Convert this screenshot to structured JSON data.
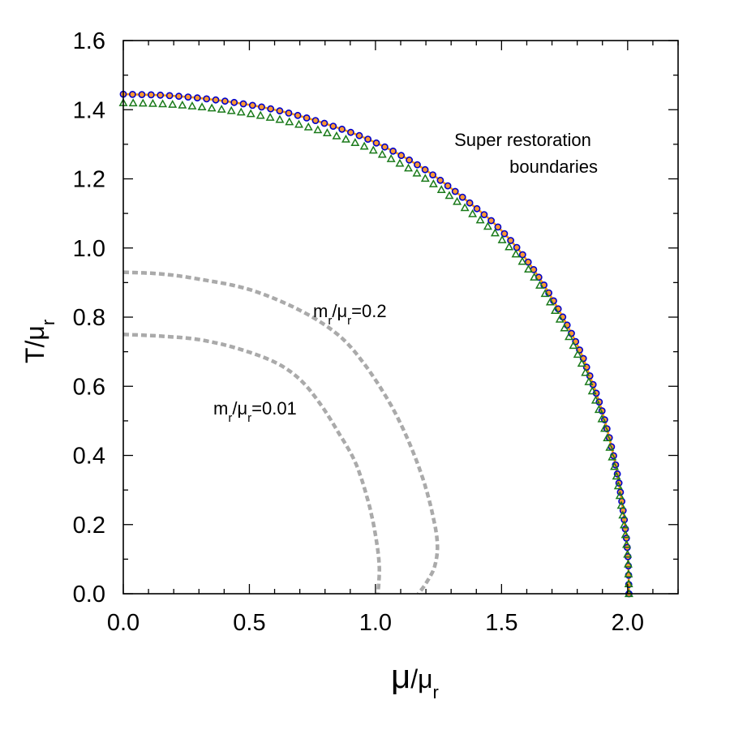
{
  "chart_data": {
    "type": "line",
    "title": "",
    "xlabel": {
      "main": "μ",
      "sep": "/μ",
      "sub": "r"
    },
    "ylabel": {
      "main": "T/μ",
      "sub": "r"
    },
    "xlim": [
      0,
      2.2
    ],
    "ylim": [
      0,
      1.6
    ],
    "x_ticks": [
      "0.0",
      "0.5",
      "1.0",
      "1.5",
      "2.0"
    ],
    "y_ticks": [
      "0.0",
      "0.2",
      "0.4",
      "0.6",
      "0.8",
      "1.0",
      "1.2",
      "1.4",
      "1.6"
    ],
    "grid": false,
    "legend": "none",
    "annotations": [
      {
        "line1": "Super restoration",
        "line2": "boundaries"
      },
      {
        "pre": "m",
        "sub1": "r",
        "mid": "/μ",
        "sub2": "r",
        "post": "=0.2"
      },
      {
        "pre": "m",
        "sub1": "r",
        "mid": "/μ",
        "sub2": "r",
        "post": "=0.01"
      }
    ],
    "colors": {
      "circles_edge": "#0000cc",
      "circles_fill": "#ff9933",
      "orange_line": "#ff9900",
      "triangles": "#1a7a1a",
      "dotted": "#aaaaaa"
    },
    "series": [
      {
        "style": "orange-solid",
        "points": [
          [
            0,
            1.445
          ],
          [
            0.2,
            1.44
          ],
          [
            0.4,
            1.425
          ],
          [
            0.6,
            1.4
          ],
          [
            0.8,
            1.36
          ],
          [
            1.0,
            1.305
          ],
          [
            1.2,
            1.225
          ],
          [
            1.4,
            1.115
          ],
          [
            1.5,
            1.05
          ],
          [
            1.6,
            0.965
          ],
          [
            1.7,
            0.855
          ],
          [
            1.8,
            0.72
          ],
          [
            1.85,
            0.63
          ],
          [
            1.9,
            0.525
          ],
          [
            1.95,
            0.38
          ],
          [
            1.98,
            0.25
          ],
          [
            2.0,
            0.12
          ],
          [
            2.005,
            0.0
          ]
        ]
      },
      {
        "style": "blue-circles",
        "points": [
          [
            0,
            1.445
          ],
          [
            0.2,
            1.44
          ],
          [
            0.4,
            1.425
          ],
          [
            0.6,
            1.4
          ],
          [
            0.8,
            1.36
          ],
          [
            1.0,
            1.305
          ],
          [
            1.2,
            1.225
          ],
          [
            1.4,
            1.115
          ],
          [
            1.5,
            1.05
          ],
          [
            1.6,
            0.965
          ],
          [
            1.7,
            0.855
          ],
          [
            1.8,
            0.72
          ],
          [
            1.85,
            0.63
          ],
          [
            1.9,
            0.525
          ],
          [
            1.95,
            0.38
          ],
          [
            1.98,
            0.25
          ],
          [
            2.0,
            0.12
          ],
          [
            2.005,
            0.0
          ]
        ]
      },
      {
        "style": "green-triangles",
        "points": [
          [
            0,
            1.42
          ],
          [
            0.2,
            1.415
          ],
          [
            0.4,
            1.4
          ],
          [
            0.6,
            1.375
          ],
          [
            0.8,
            1.335
          ],
          [
            1.0,
            1.28
          ],
          [
            1.2,
            1.2
          ],
          [
            1.4,
            1.09
          ],
          [
            1.5,
            1.025
          ],
          [
            1.6,
            0.945
          ],
          [
            1.7,
            0.835
          ],
          [
            1.8,
            0.695
          ],
          [
            1.85,
            0.605
          ],
          [
            1.9,
            0.5
          ],
          [
            1.95,
            0.36
          ],
          [
            1.98,
            0.23
          ],
          [
            2.0,
            0.11
          ],
          [
            2.005,
            0.0
          ]
        ]
      },
      {
        "style": "gray-dotted",
        "points": [
          [
            0,
            0.93
          ],
          [
            0.15,
            0.925
          ],
          [
            0.3,
            0.91
          ],
          [
            0.5,
            0.88
          ],
          [
            0.7,
            0.82
          ],
          [
            0.85,
            0.75
          ],
          [
            0.95,
            0.67
          ],
          [
            1.05,
            0.56
          ],
          [
            1.12,
            0.46
          ],
          [
            1.18,
            0.35
          ],
          [
            1.22,
            0.25
          ],
          [
            1.245,
            0.15
          ],
          [
            1.235,
            0.08
          ],
          [
            1.2,
            0.03
          ],
          [
            1.17,
            0.0
          ]
        ]
      },
      {
        "style": "gray-dotted",
        "points": [
          [
            0,
            0.75
          ],
          [
            0.15,
            0.745
          ],
          [
            0.3,
            0.735
          ],
          [
            0.45,
            0.71
          ],
          [
            0.6,
            0.67
          ],
          [
            0.7,
            0.62
          ],
          [
            0.78,
            0.55
          ],
          [
            0.85,
            0.47
          ],
          [
            0.92,
            0.38
          ],
          [
            0.97,
            0.27
          ],
          [
            1.0,
            0.17
          ],
          [
            1.015,
            0.08
          ],
          [
            1.01,
            0.0
          ]
        ]
      }
    ]
  }
}
